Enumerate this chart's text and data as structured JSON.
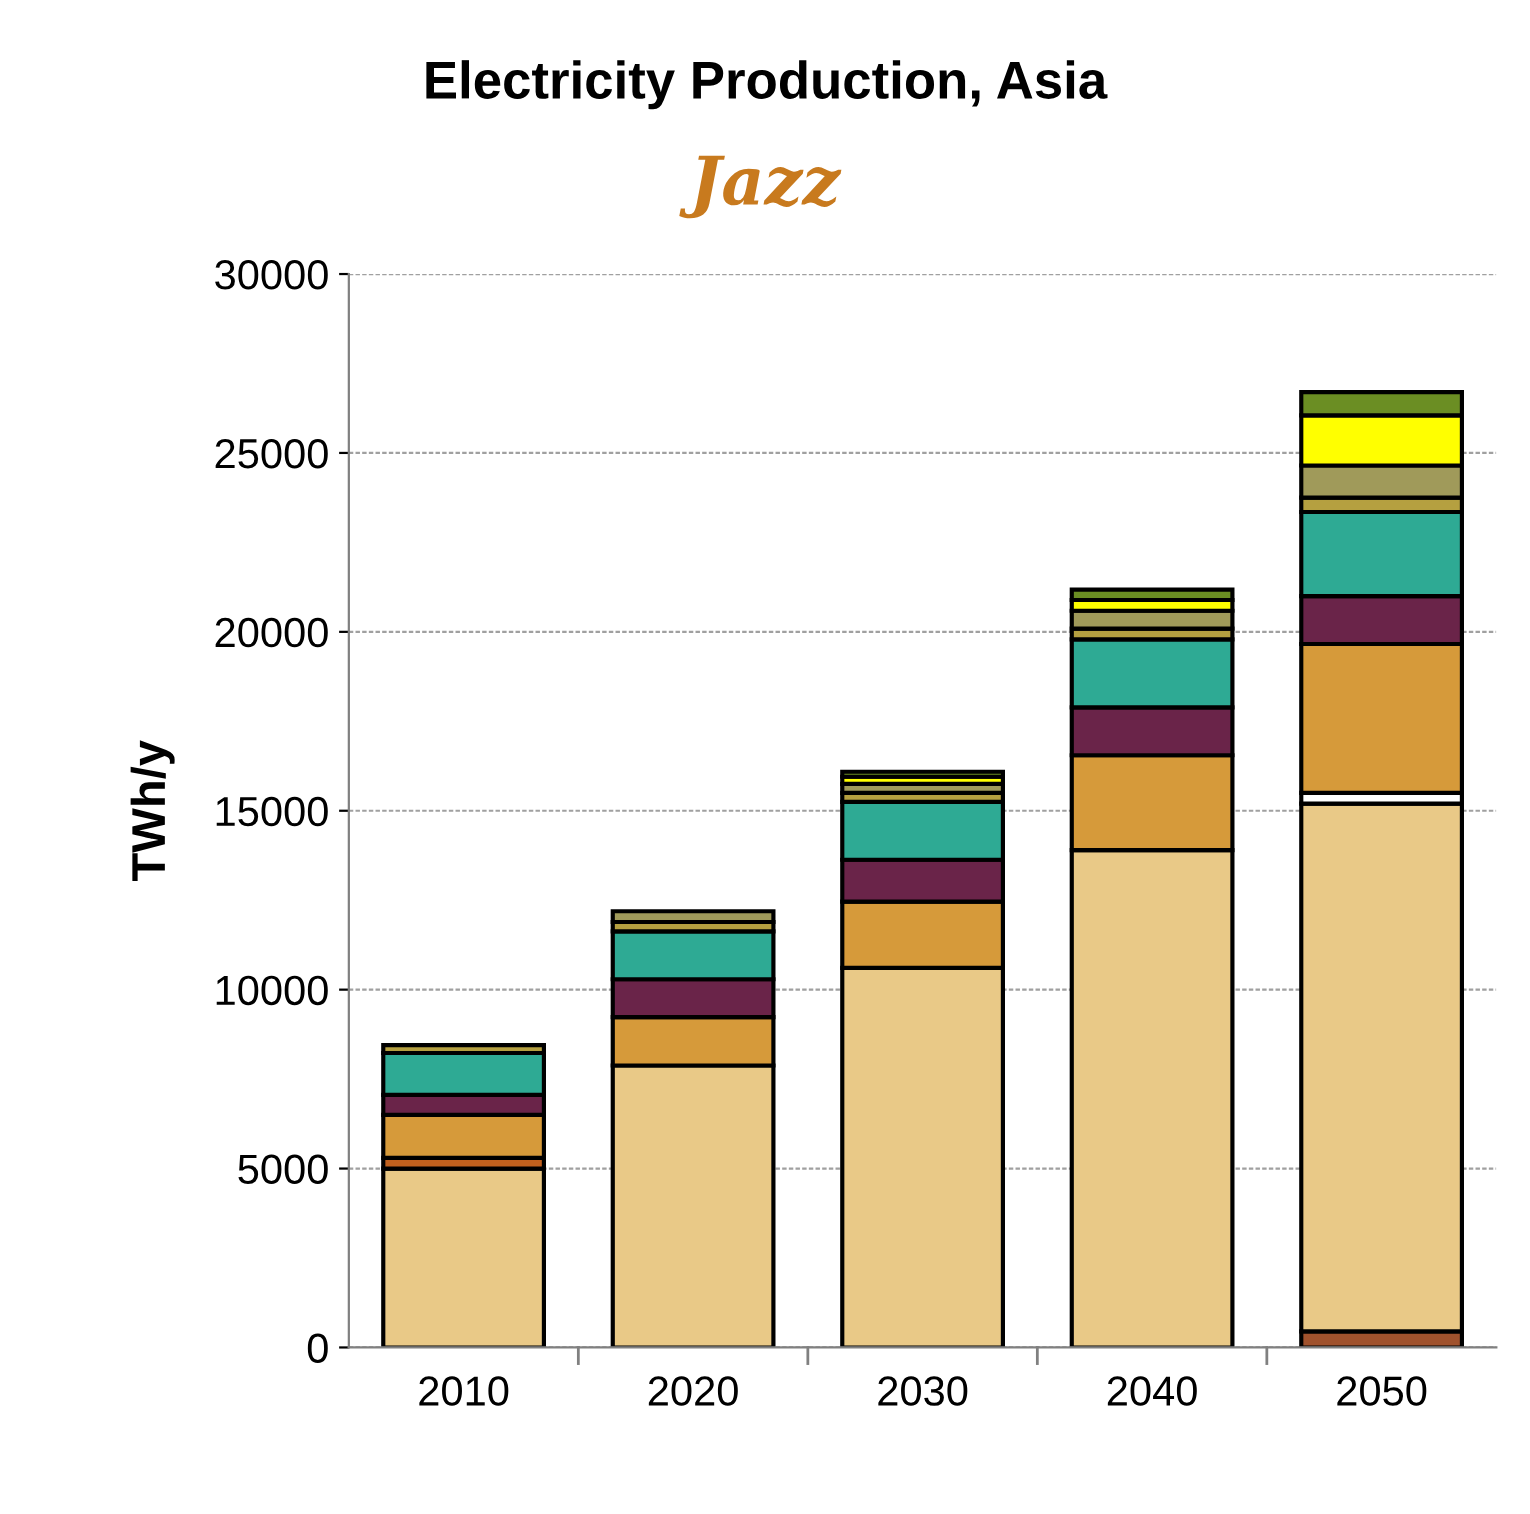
{
  "chart_data": {
    "type": "bar",
    "title": "Electricity Production, Asia",
    "subtitle": "Jazz",
    "ylabel": "TWh/y",
    "categories": [
      "2010",
      "2020",
      "2030",
      "2040",
      "2050"
    ],
    "stacked": true,
    "series": [
      {
        "color": "#a0522d",
        "values": [
          null,
          null,
          null,
          null,
          450
        ]
      },
      {
        "color": "#e9c987",
        "values": [
          5000,
          7880,
          10610,
          13900,
          14750
        ]
      },
      {
        "color": "#ffffff",
        "values": [
          null,
          null,
          null,
          null,
          300
        ]
      },
      {
        "color": "#c0601e",
        "values": [
          300,
          null,
          null,
          null,
          null
        ]
      },
      {
        "color": "#d69a3a",
        "values": [
          1200,
          1350,
          1850,
          2650,
          4160
        ]
      },
      {
        "color": "#6a2449",
        "values": [
          560,
          1060,
          1170,
          1340,
          1340
        ]
      },
      {
        "color": "#2eaa94",
        "values": [
          1170,
          1340,
          1620,
          1900,
          2350
        ]
      },
      {
        "color": "#b5a040",
        "values": [
          220,
          260,
          250,
          300,
          400
        ]
      },
      {
        "color": "#a09a5a",
        "values": [
          null,
          300,
          250,
          500,
          900
        ]
      },
      {
        "color": "#ffff00",
        "values": [
          null,
          null,
          200,
          300,
          1400
        ]
      },
      {
        "color": "#6b8e23",
        "values": [
          null,
          null,
          140,
          290,
          650
        ]
      }
    ],
    "ylim": [
      0,
      30000
    ],
    "yticks": [
      0,
      5000,
      10000,
      15000,
      20000,
      25000,
      30000
    ],
    "grid": "y"
  }
}
